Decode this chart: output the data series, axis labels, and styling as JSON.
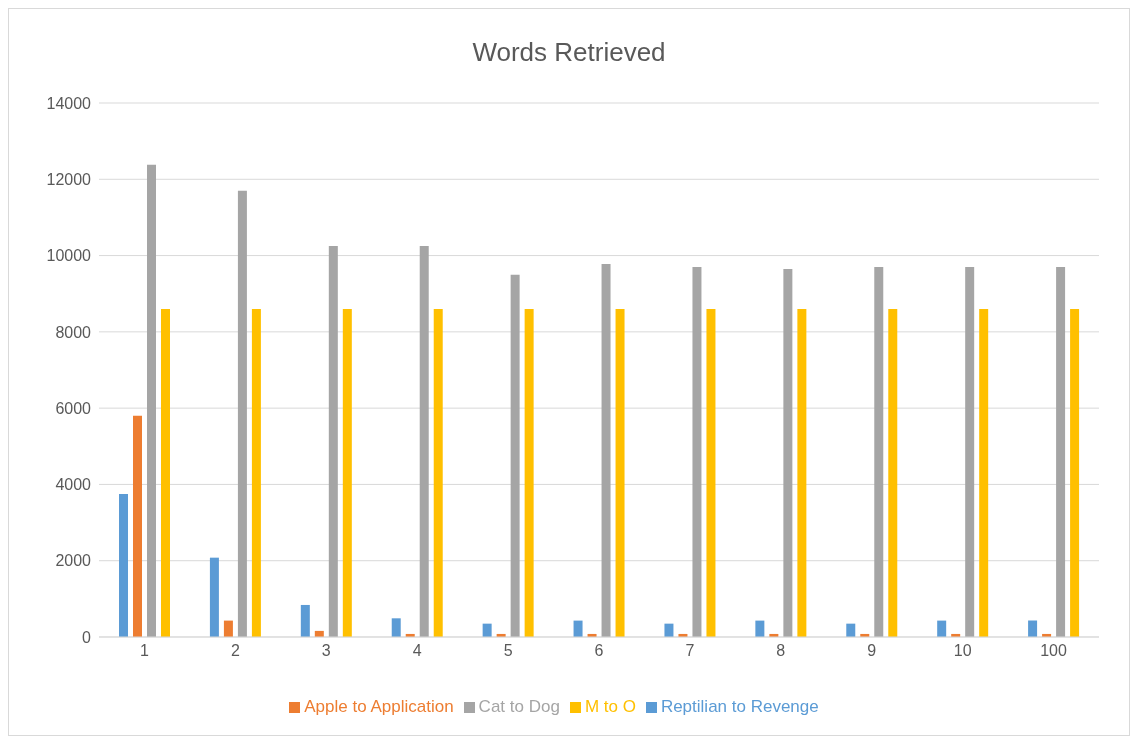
{
  "chart_data": {
    "type": "bar",
    "title": "Words Retrieved",
    "categories": [
      "1",
      "2",
      "3",
      "4",
      "5",
      "6",
      "7",
      "8",
      "9",
      "10",
      "100"
    ],
    "series": [
      {
        "name": "Reptilian to Revenge",
        "color": "#5b9bd5",
        "values": [
          3750,
          2080,
          840,
          490,
          350,
          430,
          350,
          430,
          350,
          430,
          430
        ]
      },
      {
        "name": "Apple to Application",
        "color": "#ed7d31",
        "values": [
          5800,
          430,
          160,
          80,
          80,
          80,
          80,
          80,
          80,
          80,
          80
        ]
      },
      {
        "name": "Cat to Dog",
        "color": "#a5a5a5",
        "values": [
          12380,
          11700,
          10250,
          10250,
          9500,
          9780,
          9700,
          9650,
          9700,
          9700,
          9700
        ]
      },
      {
        "name": "M to O",
        "color": "#ffc000",
        "values": [
          8600,
          8600,
          8600,
          8600,
          8600,
          8600,
          8600,
          8600,
          8600,
          8600,
          8600
        ]
      }
    ],
    "ylim": [
      0,
      14000
    ],
    "yticks": [
      0,
      2000,
      4000,
      6000,
      8000,
      10000,
      12000,
      14000
    ],
    "grid": "y",
    "legend": "bottom"
  }
}
